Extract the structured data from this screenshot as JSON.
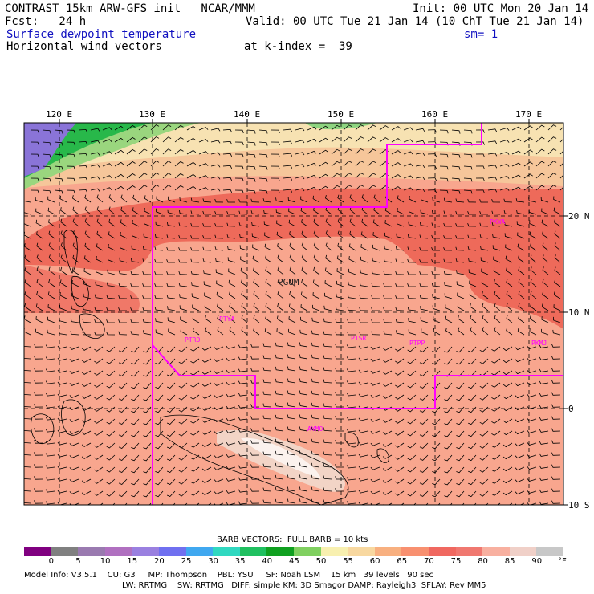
{
  "header": {
    "title_left": "CONTRAST 15km ARW-GFS init   NCAR/MMM",
    "init": "Init: 00 UTC Mon 20 Jan 14",
    "fcst": "Fcst:   24 h",
    "valid": "Valid: 00 UTC Tue 21 Jan 14 (10 ChT Tue 21 Jan 14)",
    "field1": "Surface dewpoint temperature",
    "smooth": "sm= 1",
    "field2": "Horizontal wind vectors",
    "level": "at k-index =  39"
  },
  "map": {
    "lon_labels": [
      "120 E",
      "130 E",
      "140 E",
      "150 E",
      "160 E",
      "170 E"
    ],
    "lat_labels": [
      "20 N",
      "10 N",
      "0",
      "10 S"
    ],
    "stations": [
      "PGUM",
      "PTYA",
      "PTRO",
      "PTSR",
      "PTPP",
      "PKMJ",
      "PKWA",
      "AYMO"
    ],
    "colors": {
      "land_border": "#000000",
      "region_line": "#ff00ff"
    }
  },
  "legend": {
    "caption": "BARB VECTORS:  FULL BARB = 10 kts",
    "ticks": [
      "0",
      "5",
      "10",
      "15",
      "20",
      "25",
      "30",
      "35",
      "40",
      "45",
      "50",
      "55",
      "60",
      "65",
      "70",
      "75",
      "80",
      "85",
      "90"
    ],
    "unit": "°F",
    "colors": [
      "#800080",
      "#808080",
      "#9a7ab0",
      "#b070c0",
      "#9a80e0",
      "#7070f0",
      "#40a8f0",
      "#30d8c0",
      "#20c060",
      "#10a020",
      "#80d060",
      "#f8f0b0",
      "#f8d8a0",
      "#f8b080",
      "#f89070",
      "#f06860",
      "#f07870",
      "#f8b0a0",
      "#f0d0c8",
      "#c8c8c8"
    ]
  },
  "footer": {
    "line1": "Model Info: V3.5.1    CU: G3     MP: Thompson    PBL: YSU     SF: Noah LSM    15 km   39 levels   90 sec",
    "line2": "LW: RRTMG    SW: RRTMG   DIFF: simple KM: 3D Smagor DAMP: Rayleigh3  SFLAY: Rev MM5"
  }
}
